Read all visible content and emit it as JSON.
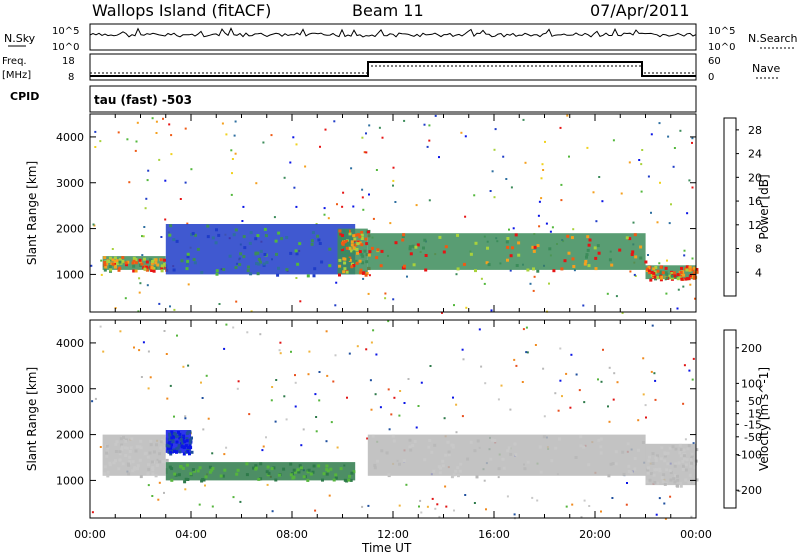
{
  "header": {
    "site": "Wallops Island (fitACF)",
    "beam": "Beam 11",
    "date": "07/Apr/2011"
  },
  "top_panels": {
    "nsky_label": "N.Sky",
    "nsky_ticks": [
      "10^5",
      "10^0"
    ],
    "nsearch_label": "N.Search",
    "nsearch_ticks": [
      "10^5",
      "10^0"
    ],
    "freq_label": "Freq.",
    "freq_unit": "[MHz]",
    "freq_ticks": [
      "18",
      "8"
    ],
    "nave_label": "Nave",
    "nave_ticks": [
      "60",
      "0"
    ],
    "cpid_label": "CPID",
    "cpid_text": "tau (fast) -503"
  },
  "colors": {
    "power": [
      "#0a14e6",
      "#1f3cc8",
      "#2e6fa0",
      "#3c8c5a",
      "#53b83c",
      "#a8d23c",
      "#f0d21e",
      "#f5a01e",
      "#ef5a14",
      "#e61414"
    ],
    "velocity": [
      "#0a14e6",
      "#1f4f9e",
      "#2e7a4a",
      "#55b53c",
      "#b9b9b9",
      "#c8c8c8",
      "#f0b43c",
      "#f08a1e",
      "#e8501e",
      "#e01414"
    ]
  },
  "chart_data": [
    {
      "type": "heatmap",
      "title": "Power",
      "xlabel": "Time UT",
      "ylabel": "Slant Range [km]",
      "xlim": [
        "00:00",
        "24:00"
      ],
      "ylim": [
        180,
        4500
      ],
      "xticks": [
        "00:00",
        "04:00",
        "08:00",
        "12:00",
        "16:00",
        "20:00",
        "00:00"
      ],
      "yticks": [
        1000,
        2000,
        3000,
        4000
      ],
      "colorbar": {
        "label": "Power [dB]",
        "ticks": [
          4,
          8,
          12,
          16,
          20,
          24,
          28
        ],
        "range": [
          0,
          30
        ]
      },
      "features": [
        {
          "t0": 0.5,
          "t1": 3.0,
          "r0": 1100,
          "r1": 1400,
          "level": "high"
        },
        {
          "t0": 3.0,
          "t1": 10.5,
          "r0": 1000,
          "r1": 2100,
          "level": "medium"
        },
        {
          "t0": 9.8,
          "t1": 11.0,
          "r0": 1000,
          "r1": 2000,
          "level": "high"
        },
        {
          "t0": 11.0,
          "t1": 22.0,
          "r0": 1100,
          "r1": 1900,
          "level": "high"
        },
        {
          "t0": 22.0,
          "t1": 24.0,
          "r0": 900,
          "r1": 1200,
          "level": "high"
        }
      ]
    },
    {
      "type": "heatmap",
      "title": "Velocity",
      "xlabel": "Time UT",
      "ylabel": "Slant Range [km]",
      "xlim": [
        "00:00",
        "24:00"
      ],
      "ylim": [
        180,
        4500
      ],
      "xticks": [
        "00:00",
        "04:00",
        "08:00",
        "12:00",
        "16:00",
        "20:00",
        "00:00"
      ],
      "yticks": [
        1000,
        2000,
        3000,
        4000
      ],
      "colorbar": {
        "label": "Velocity [m s^-1]",
        "ticks": [
          200,
          100,
          50,
          15,
          -15,
          -50,
          -100,
          -200
        ],
        "range": [
          -250,
          250
        ]
      },
      "features": [
        {
          "t0": 0.5,
          "t1": 3.0,
          "r0": 1100,
          "r1": 2000,
          "level": "ground"
        },
        {
          "t0": 3.0,
          "t1": 4.0,
          "r0": 1600,
          "r1": 2100,
          "level": "strong-toward"
        },
        {
          "t0": 3.0,
          "t1": 10.5,
          "r0": 1000,
          "r1": 1400,
          "level": "toward"
        },
        {
          "t0": 11.0,
          "t1": 22.0,
          "r0": 1100,
          "r1": 2000,
          "level": "ground"
        },
        {
          "t0": 22.0,
          "t1": 24.0,
          "r0": 900,
          "r1": 1800,
          "level": "ground"
        }
      ]
    }
  ]
}
